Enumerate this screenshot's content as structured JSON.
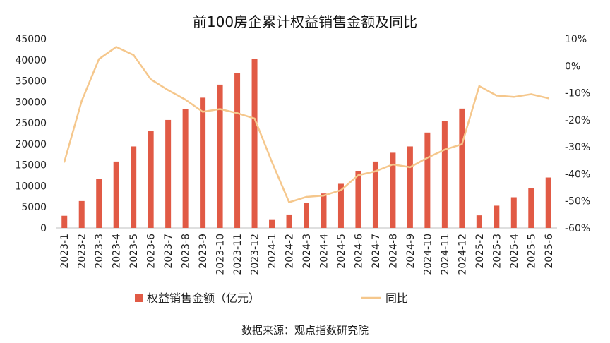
{
  "chart_data": {
    "type": "bar+line",
    "title": "前100房企累计权益销售金额及同比",
    "categories": [
      "2023-1",
      "2023-2",
      "2023-3",
      "2023-4",
      "2023-5",
      "2023-6",
      "2023-7",
      "2023-8",
      "2023-9",
      "2023-10",
      "2023-11",
      "2023-12",
      "2024-1",
      "2024-2",
      "2024-3",
      "2024-4",
      "2024-5",
      "2024-6",
      "2024-7",
      "2024-8",
      "2024-9",
      "2024-10",
      "2024-11",
      "2024-12",
      "2025-2",
      "2025-3",
      "2025-4",
      "2025-5",
      "2025-6"
    ],
    "series": [
      {
        "name": "权益销售金额（亿元）",
        "type": "bar",
        "axis": "left",
        "color": "#e15a45",
        "values": [
          2900,
          6400,
          11700,
          15800,
          19400,
          23000,
          25700,
          28300,
          31000,
          34100,
          36900,
          40200,
          1900,
          3200,
          6000,
          8200,
          10500,
          13600,
          15800,
          17900,
          19400,
          22700,
          25500,
          28400,
          3000,
          5300,
          7300,
          9400,
          12000
        ]
      },
      {
        "name": "同比",
        "type": "line",
        "axis": "right",
        "color": "#f5c78c",
        "values": [
          -35.5,
          -13,
          2.5,
          7,
          4,
          -5,
          -9,
          -12.5,
          -17,
          -16,
          -17.5,
          -19.5,
          -35.5,
          -50.5,
          -48.5,
          -48,
          -46,
          -40.5,
          -39,
          -36.5,
          -37.5,
          -34,
          -31,
          -29,
          -7.5,
          -11,
          -11.5,
          -10.5,
          -12
        ]
      }
    ],
    "y_left": {
      "ylim": [
        0,
        45000
      ],
      "ticks": [
        0,
        5000,
        10000,
        15000,
        20000,
        25000,
        30000,
        35000,
        40000,
        45000
      ],
      "tick_labels": [
        "0",
        "5000",
        "10000",
        "15000",
        "20000",
        "25000",
        "30000",
        "35000",
        "40000",
        "45000"
      ]
    },
    "y_right": {
      "ylim": [
        -60,
        10
      ],
      "ticks": [
        -60,
        -50,
        -40,
        -30,
        -20,
        -10,
        0,
        10
      ],
      "tick_labels": [
        "-60%",
        "-50%",
        "-40%",
        "-30%",
        "-20%",
        "-10%",
        "0%",
        "10%"
      ]
    },
    "legend": [
      {
        "label": "权益销售金额（亿元）",
        "kind": "bar",
        "color": "#e15a45"
      },
      {
        "label": "同比",
        "kind": "line",
        "color": "#f5c78c"
      }
    ],
    "legend_position": "bottom",
    "source": "数据来源：观点指数研究院",
    "grid": false
  }
}
